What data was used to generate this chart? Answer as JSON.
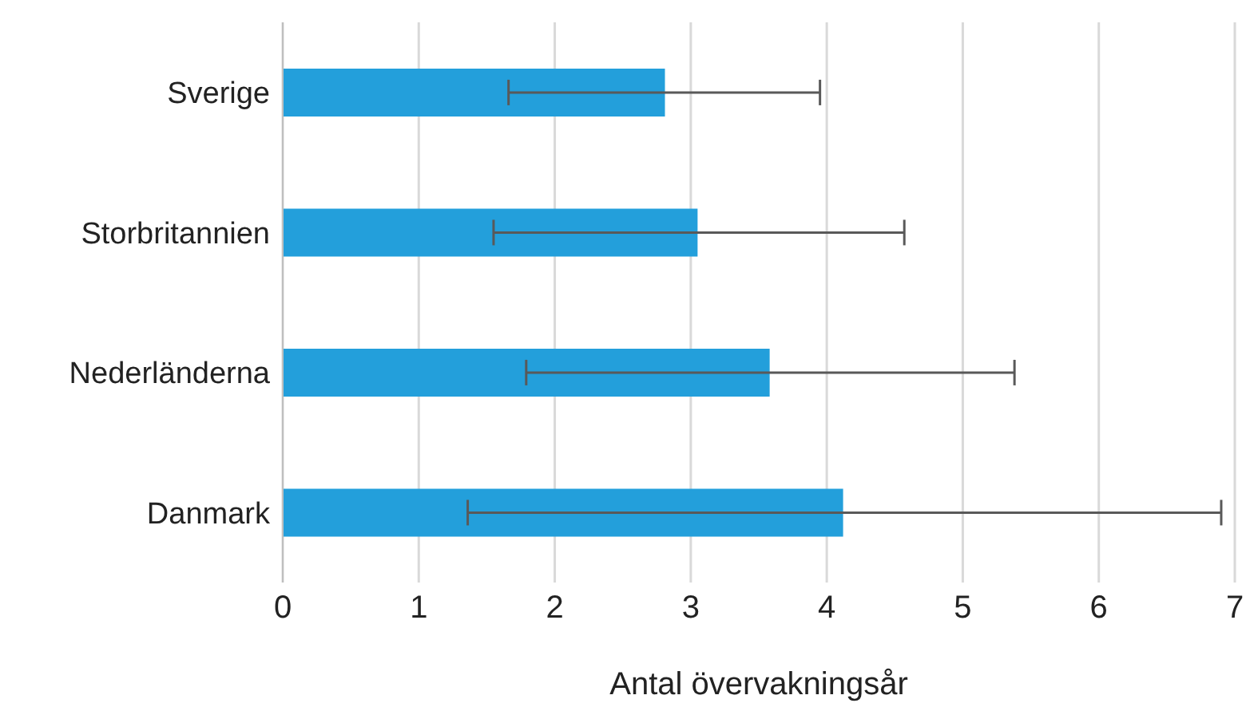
{
  "chart_data": {
    "type": "bar",
    "orientation": "horizontal",
    "xlabel": "Antal övervakningsår",
    "categories": [
      "Sverige",
      "Storbritannien",
      "Nederländerna",
      "Danmark"
    ],
    "values": [
      2.81,
      3.05,
      3.58,
      4.12
    ],
    "errors": [
      [
        1.66,
        3.95
      ],
      [
        1.55,
        4.57
      ],
      [
        1.79,
        5.38
      ],
      [
        1.36,
        6.9
      ]
    ],
    "color": "#239fdb",
    "xlim": [
      0,
      7
    ],
    "xticks": [
      0,
      1,
      2,
      3,
      4,
      5,
      6,
      7
    ],
    "grid": "x"
  }
}
